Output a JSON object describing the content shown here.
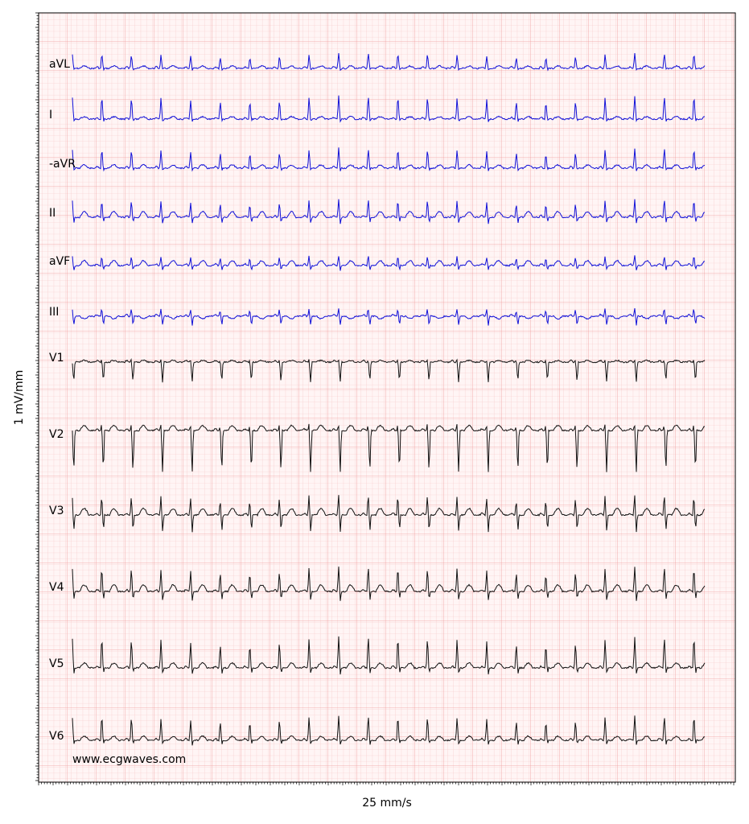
{
  "leads": [
    "aVL",
    "I",
    "-aVR",
    "II",
    "aVF",
    "III",
    "V1",
    "V2",
    "V3",
    "V4",
    "V5",
    "V6"
  ],
  "y_axis_label": "1 mV/mm",
  "x_axis_label": "25 mm/s",
  "watermark": "www.ecgwaves.com"
}
